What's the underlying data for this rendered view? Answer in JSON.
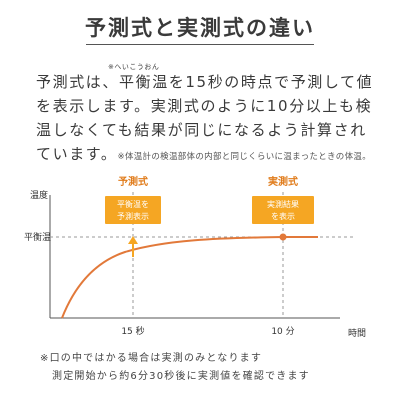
{
  "title": "予測式と実測式の違い",
  "ruby": "※へいこうおん",
  "paragraph": {
    "part1": "予測式は、平衡温を15秒の時点で予測して値を表示します。実測式のように10分以上も検温しなくても結果が同じになるよう計算されています。",
    "note": "※体温計の検温部体の内部と同じくらいに温まったときの体温。"
  },
  "chart_data": {
    "type": "line",
    "xlabel": "時間",
    "ylabel": "温度",
    "ytick": "平衡温",
    "xticks": [
      "15 秒",
      "10 分"
    ],
    "markers": [
      {
        "label": "予測式",
        "callout": [
          "平衡温を",
          "予測表示"
        ],
        "x_tick": "15 秒"
      },
      {
        "label": "実測式",
        "callout": [
          "実測結果",
          "を表示"
        ],
        "x_tick": "10 分"
      }
    ],
    "colors": {
      "curve": "#e2793a",
      "callout": "#f5a623",
      "label": "#e07b1a",
      "axis": "#555555",
      "dash": "#999999"
    }
  },
  "footnote": {
    "line1": "※口の中ではかる場合は実測のみとなります",
    "line2": "測定開始から約6分30秒後に実測値を確認できます"
  }
}
